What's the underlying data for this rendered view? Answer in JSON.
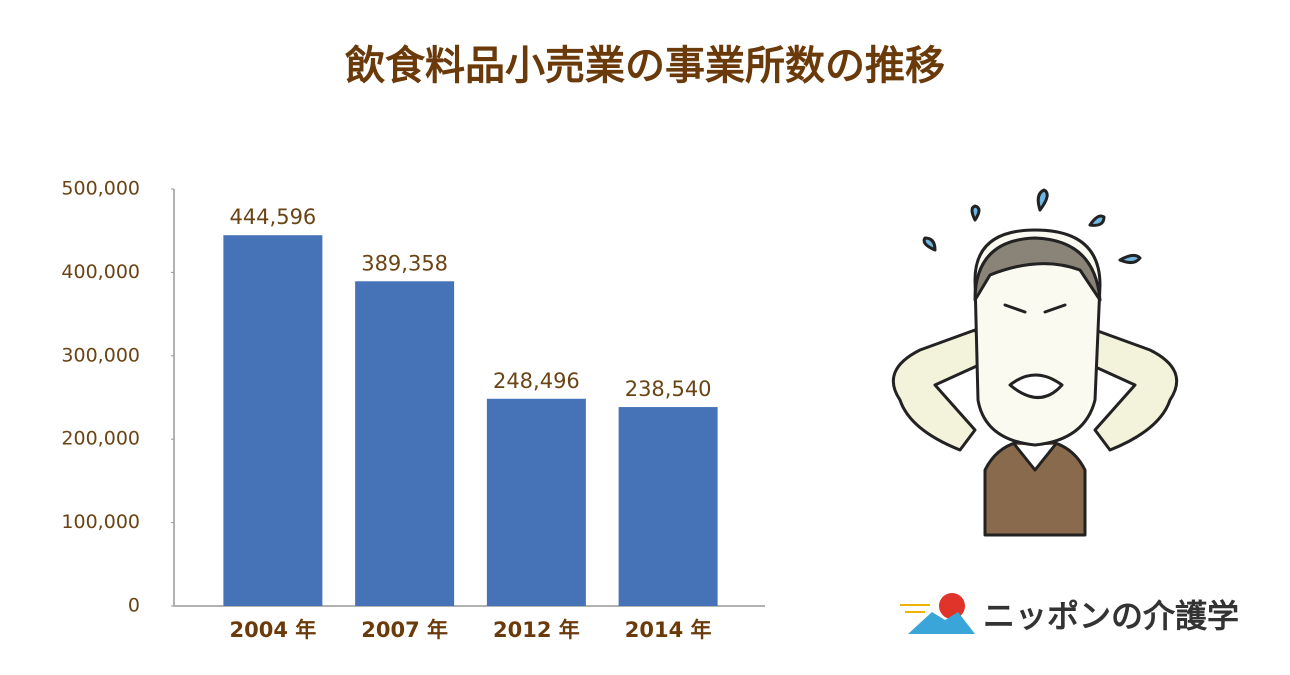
{
  "chart_data": {
    "type": "bar",
    "title": "飲食料品小売業の事業所数の推移",
    "categories": [
      "2004 年",
      "2007 年",
      "2012 年",
      "2014 年"
    ],
    "values": [
      444596,
      389358,
      248496,
      238540
    ],
    "value_labels": [
      "444,596",
      "389,358",
      "248,496",
      "238,540"
    ],
    "color": "#4672b8",
    "ylim": [
      0,
      500000
    ],
    "yticks": [
      0,
      {
        "value": 100000,
        "label": "100,000"
      },
      {
        "value": 200000,
        "label": "200,000"
      },
      {
        "value": 300000,
        "label": "300,000"
      },
      {
        "value": 400000,
        "label": "400,000"
      },
      {
        "value": 500000,
        "label": "500,000"
      }
    ],
    "grid": false
  },
  "brand": "ニッポンの介護学"
}
